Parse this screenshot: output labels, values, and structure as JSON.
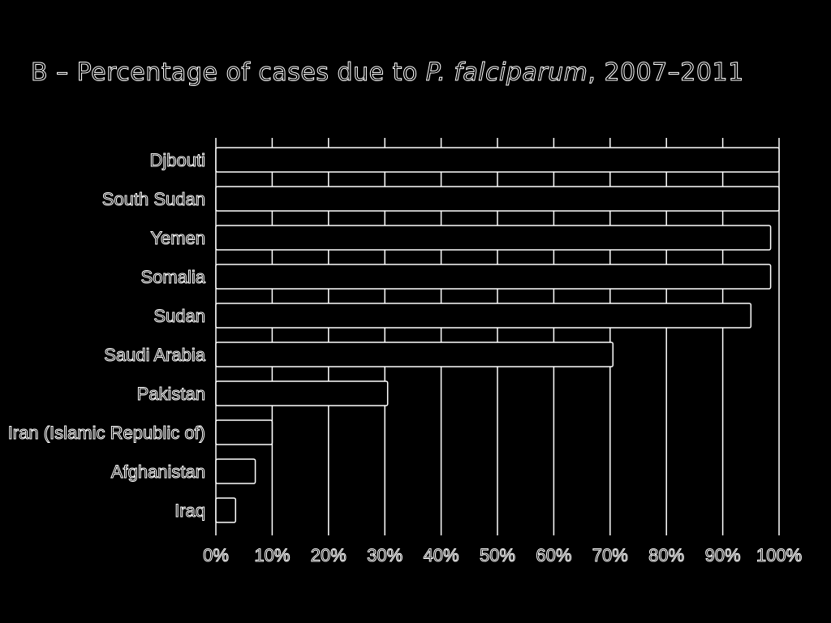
{
  "title": {
    "prefix": "B – Percentage of cases due to ",
    "italic": "P. falciparum",
    "suffix": ", 2007–2011"
  },
  "chart_data": {
    "type": "bar",
    "orientation": "horizontal",
    "categories": [
      "Djbouti",
      "South Sudan",
      "Yemen",
      "Somalia",
      "Sudan",
      "Saudi Arabia",
      "Pakistan",
      "Iran (Islamic Republic of)",
      "Afghanistan",
      "Iraq"
    ],
    "values": [
      100,
      100,
      98.5,
      98.5,
      95,
      70.5,
      30.5,
      10,
      7,
      3.5
    ],
    "xlim": [
      0,
      100
    ],
    "ticks": [
      "0%",
      "10%",
      "20%",
      "30%",
      "40%",
      "50%",
      "60%",
      "70%",
      "80%",
      "90%",
      "100%"
    ],
    "grid": true
  }
}
